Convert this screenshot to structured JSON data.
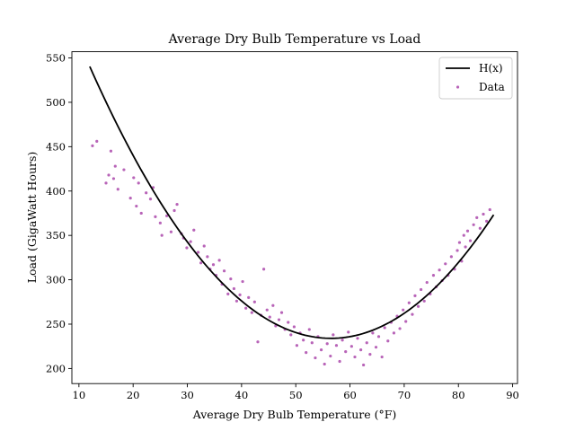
{
  "chart_data": {
    "type": "scatter",
    "title": "Average Dry Bulb Temperature vs Load",
    "xlabel": "Average Dry Bulb Temperature (°F)",
    "ylabel": "Load (GigaWatt Hours)",
    "xlim": [
      8.7,
      90.9
    ],
    "ylim": [
      183,
      557
    ],
    "xticks": [
      10,
      20,
      30,
      40,
      50,
      60,
      70,
      80,
      90
    ],
    "yticks": [
      200,
      250,
      300,
      350,
      400,
      450,
      500,
      550
    ],
    "legend": {
      "placement": "top-right",
      "entries": [
        "H(x)",
        "Data"
      ]
    },
    "fit": {
      "name": "H(x)",
      "color": "#000000",
      "model": "quadratic",
      "vertex_x": 56.5,
      "vertex_y": 234,
      "coefficient": 0.1547,
      "x_range": [
        12,
        86.5
      ]
    },
    "data": {
      "name": "Data",
      "color": "#a030a0",
      "points": [
        [
          12.5,
          451
        ],
        [
          13.3,
          456
        ],
        [
          15.0,
          409
        ],
        [
          15.5,
          418
        ],
        [
          15.9,
          445
        ],
        [
          16.4,
          414
        ],
        [
          16.7,
          428
        ],
        [
          17.2,
          402
        ],
        [
          18.3,
          424
        ],
        [
          19.5,
          392
        ],
        [
          20.1,
          415
        ],
        [
          20.6,
          383
        ],
        [
          21.0,
          409
        ],
        [
          21.5,
          375
        ],
        [
          22.4,
          398
        ],
        [
          23.2,
          391
        ],
        [
          23.7,
          404
        ],
        [
          24.1,
          371
        ],
        [
          25.0,
          364
        ],
        [
          25.3,
          350
        ],
        [
          26.2,
          372
        ],
        [
          27.0,
          354
        ],
        [
          27.6,
          378
        ],
        [
          28.1,
          385
        ],
        [
          28.9,
          352
        ],
        [
          29.3,
          347
        ],
        [
          29.9,
          336
        ],
        [
          30.6,
          343
        ],
        [
          31.2,
          356
        ],
        [
          32.0,
          331
        ],
        [
          32.5,
          319
        ],
        [
          33.1,
          338
        ],
        [
          33.7,
          326
        ],
        [
          34.2,
          312
        ],
        [
          34.8,
          317
        ],
        [
          35.3,
          305
        ],
        [
          35.9,
          322
        ],
        [
          36.4,
          295
        ],
        [
          36.8,
          310
        ],
        [
          37.5,
          284
        ],
        [
          38.0,
          301
        ],
        [
          38.6,
          290
        ],
        [
          39.1,
          276
        ],
        [
          39.7,
          283
        ],
        [
          40.2,
          298
        ],
        [
          40.8,
          268
        ],
        [
          41.3,
          280
        ],
        [
          41.9,
          263
        ],
        [
          42.4,
          275
        ],
        [
          43.0,
          230
        ],
        [
          43.6,
          260
        ],
        [
          44.1,
          312
        ],
        [
          44.7,
          266
        ],
        [
          45.2,
          258
        ],
        [
          45.8,
          271
        ],
        [
          46.3,
          248
        ],
        [
          46.9,
          255
        ],
        [
          47.4,
          263
        ],
        [
          48.0,
          244
        ],
        [
          48.6,
          252
        ],
        [
          49.1,
          238
        ],
        [
          49.7,
          247
        ],
        [
          50.2,
          226
        ],
        [
          50.8,
          240
        ],
        [
          51.4,
          232
        ],
        [
          51.9,
          218
        ],
        [
          52.5,
          244
        ],
        [
          53.0,
          229
        ],
        [
          53.6,
          212
        ],
        [
          54.1,
          236
        ],
        [
          54.7,
          221
        ],
        [
          55.3,
          205
        ],
        [
          55.8,
          228
        ],
        [
          56.4,
          214
        ],
        [
          56.9,
          238
        ],
        [
          57.5,
          226
        ],
        [
          58.1,
          208
        ],
        [
          58.6,
          232
        ],
        [
          59.2,
          219
        ],
        [
          59.7,
          241
        ],
        [
          60.3,
          225
        ],
        [
          60.9,
          213
        ],
        [
          61.4,
          234
        ],
        [
          62.0,
          221
        ],
        [
          62.5,
          204
        ],
        [
          63.1,
          229
        ],
        [
          63.7,
          216
        ],
        [
          64.2,
          240
        ],
        [
          64.8,
          224
        ],
        [
          65.3,
          236
        ],
        [
          65.9,
          213
        ],
        [
          66.4,
          246
        ],
        [
          67.0,
          231
        ],
        [
          67.6,
          252
        ],
        [
          68.1,
          240
        ],
        [
          68.7,
          259
        ],
        [
          69.2,
          245
        ],
        [
          69.8,
          266
        ],
        [
          70.3,
          253
        ],
        [
          70.9,
          274
        ],
        [
          71.5,
          261
        ],
        [
          72.0,
          282
        ],
        [
          72.6,
          270
        ],
        [
          73.1,
          289
        ],
        [
          73.7,
          276
        ],
        [
          74.2,
          297
        ],
        [
          74.8,
          284
        ],
        [
          75.4,
          305
        ],
        [
          75.9,
          292
        ],
        [
          76.5,
          311
        ],
        [
          77.0,
          299
        ],
        [
          77.6,
          318
        ],
        [
          78.1,
          305
        ],
        [
          78.7,
          326
        ],
        [
          79.3,
          312
        ],
        [
          79.8,
          333
        ],
        [
          80.2,
          342
        ],
        [
          80.6,
          321
        ],
        [
          81.0,
          350
        ],
        [
          81.3,
          337
        ],
        [
          81.7,
          355
        ],
        [
          82.2,
          344
        ],
        [
          82.8,
          362
        ],
        [
          83.4,
          370
        ],
        [
          84.0,
          358
        ],
        [
          84.6,
          374
        ],
        [
          85.2,
          366
        ],
        [
          85.8,
          379
        ]
      ]
    }
  }
}
